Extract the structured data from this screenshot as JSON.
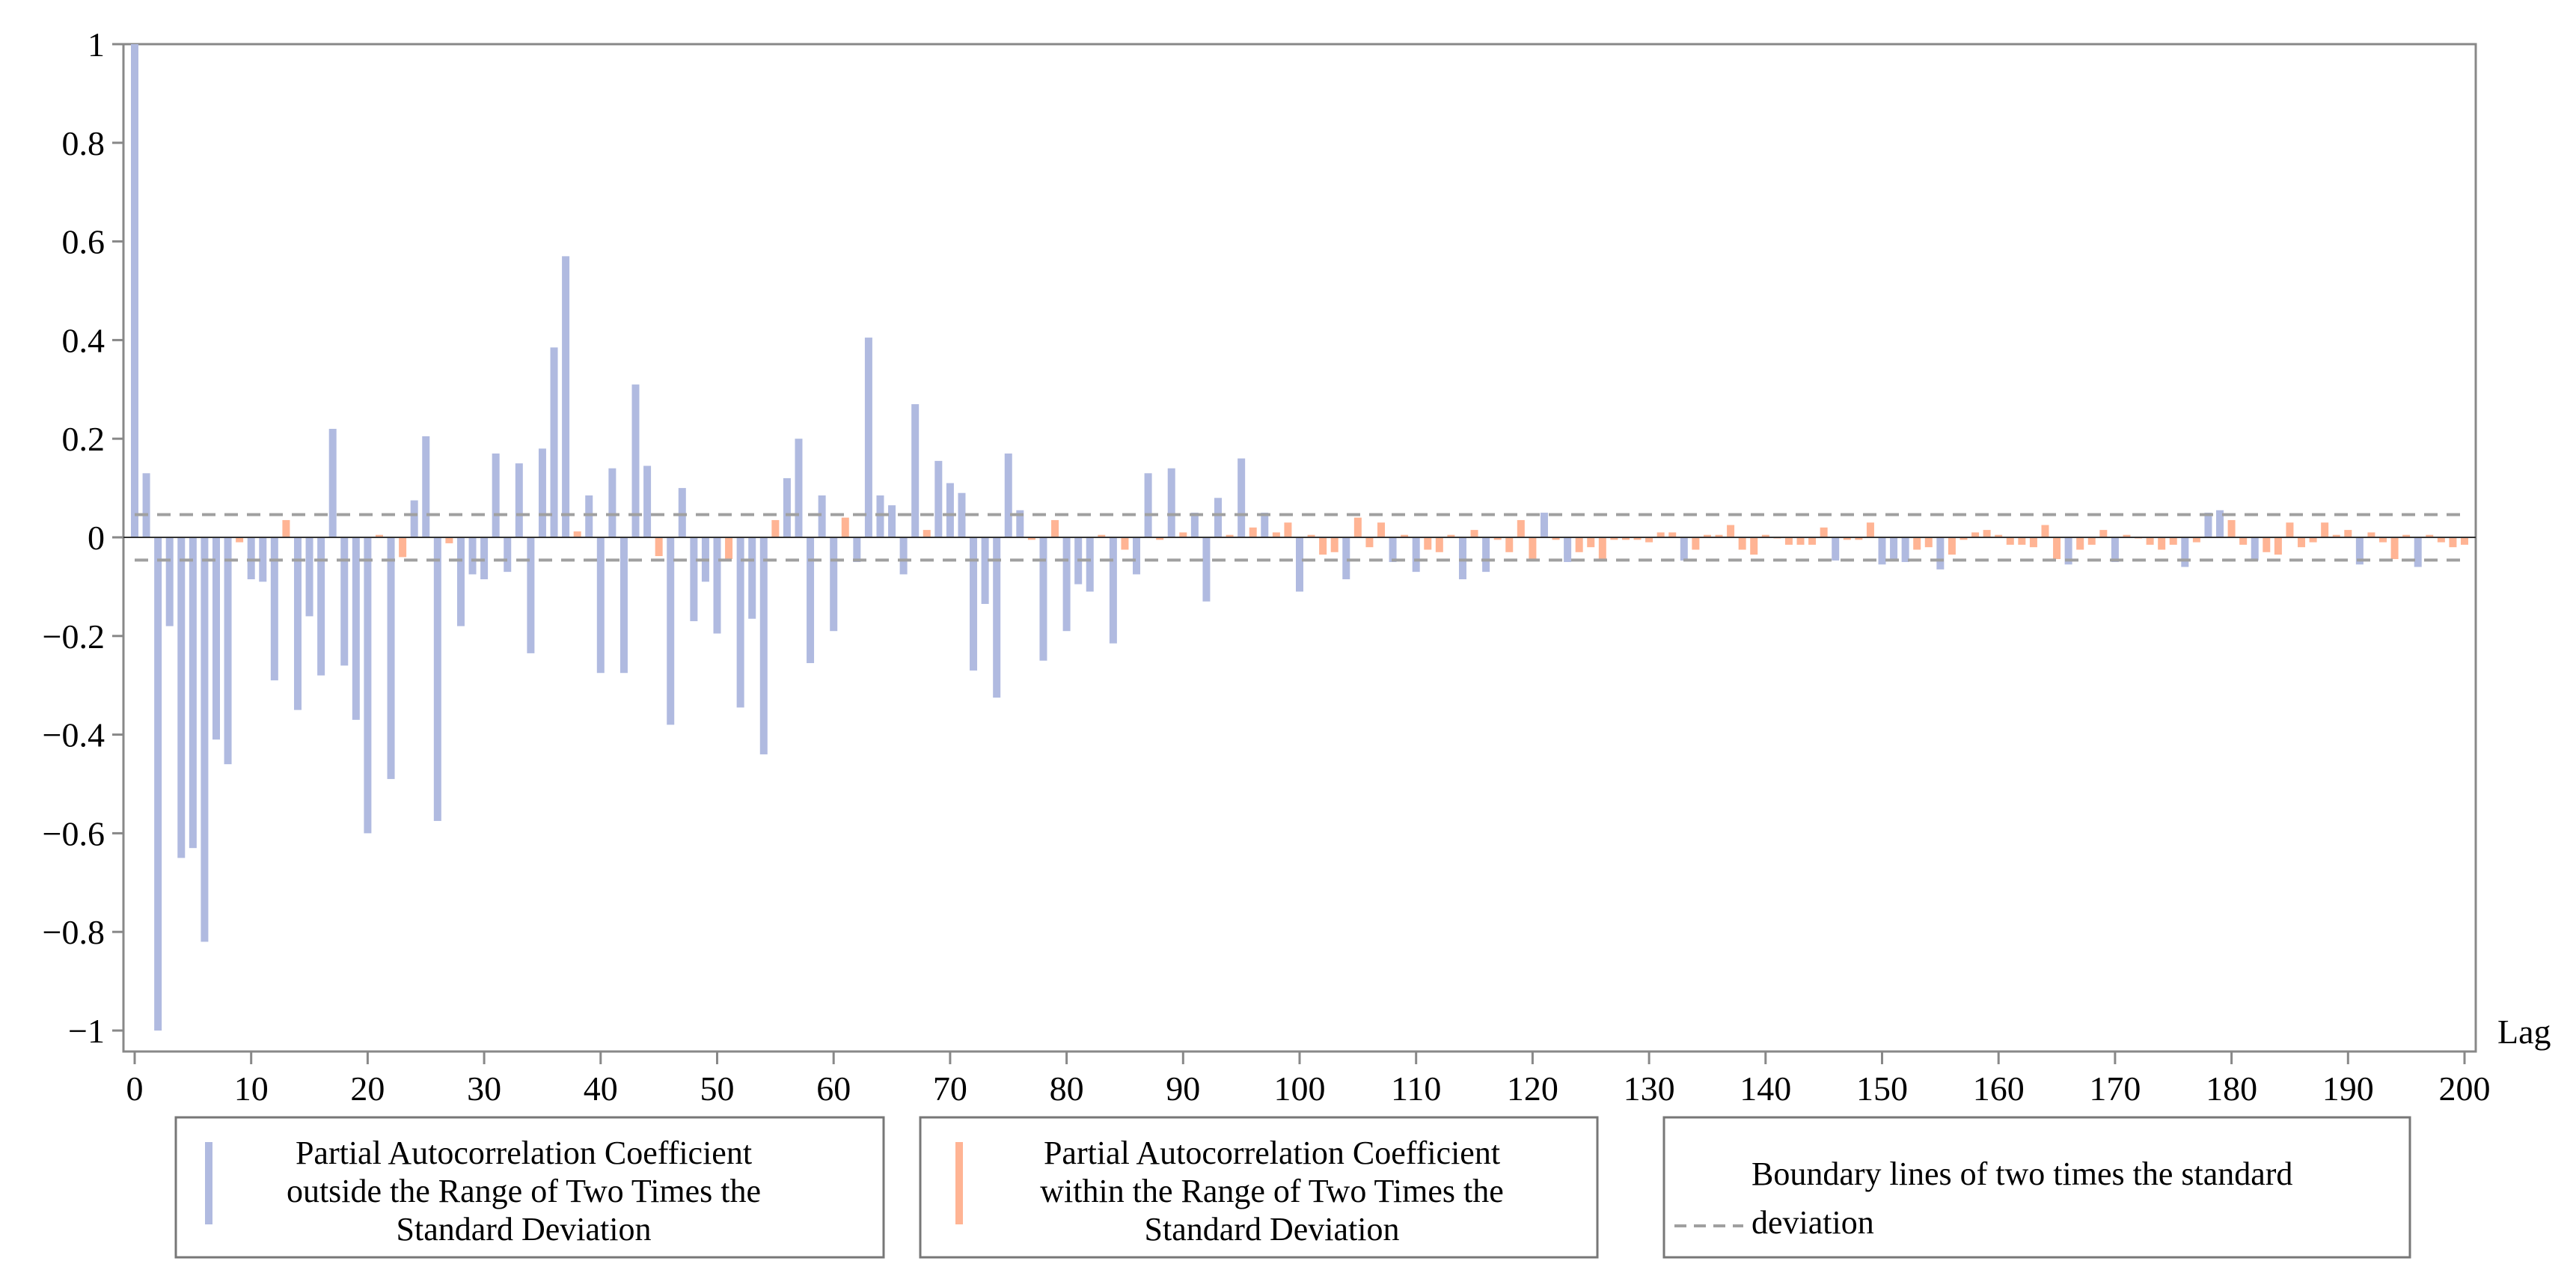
{
  "chart_data": {
    "type": "bar",
    "title": "",
    "xlabel": "Lag",
    "ylabel": "",
    "xlim": [
      0,
      200
    ],
    "ylim": [
      -1,
      1
    ],
    "x_ticks": [
      "0",
      "10",
      "20",
      "30",
      "40",
      "50",
      "60",
      "70",
      "80",
      "90",
      "100",
      "110",
      "120",
      "130",
      "140",
      "150",
      "160",
      "170",
      "180",
      "190",
      "200"
    ],
    "y_ticks": [
      "1",
      "0.8",
      "0.6",
      "0.4",
      "0.2",
      "0",
      "−0.2",
      "−0.4",
      "−0.6",
      "−0.8",
      "−1"
    ],
    "grid": false,
    "boundary": 0.046,
    "colors": {
      "outside": "#b0bae0",
      "within": "#ffb494",
      "boundary": "#a0a0a0"
    },
    "legend": {
      "placement": "bottom",
      "outside": [
        "Partial Autocorrelation Coefficient",
        "outside the Range of Two Times the",
        "Standard Deviation"
      ],
      "within": [
        "Partial Autocorrelation Coefficient",
        "within the Range of Two Times the",
        "Standard Deviation"
      ],
      "boundary": [
        "Boundary lines of two times the standard",
        "deviation"
      ]
    },
    "lags_start": 0,
    "values": [
      1,
      0.13,
      -1.0,
      -0.18,
      -0.65,
      -0.63,
      -0.82,
      -0.41,
      -0.46,
      -0.01,
      -0.085,
      -0.09,
      -0.29,
      0.035,
      -0.35,
      -0.16,
      -0.28,
      0.22,
      -0.26,
      -0.37,
      -0.6,
      0.005,
      -0.49,
      -0.04,
      0.075,
      0.205,
      -0.575,
      -0.012,
      -0.18,
      -0.075,
      -0.085,
      0.17,
      -0.07,
      0.15,
      -0.235,
      0.18,
      0.385,
      0.57,
      0.012,
      0.085,
      -0.275,
      0.14,
      -0.275,
      0.31,
      0.145,
      -0.038,
      -0.38,
      0.1,
      -0.17,
      -0.09,
      -0.195,
      -0.044,
      -0.345,
      -0.165,
      -0.44,
      0.035,
      0.12,
      0.2,
      -0.255,
      0.085,
      -0.19,
      0.04,
      -0.05,
      0.405,
      0.085,
      0.065,
      -0.075,
      0.27,
      0.015,
      0.155,
      0.11,
      0.09,
      -0.27,
      -0.135,
      -0.325,
      0.17,
      0.055,
      -0.005,
      -0.25,
      0.035,
      -0.19,
      -0.095,
      -0.11,
      0.005,
      -0.215,
      -0.025,
      -0.075,
      0.13,
      -0.005,
      0.14,
      0.01,
      0.05,
      -0.13,
      0.08,
      0.005,
      0.16,
      0.02,
      0.05,
      0.01,
      0.03,
      -0.11,
      0.005,
      -0.035,
      -0.03,
      -0.085,
      0.04,
      -0.02,
      0.03,
      -0.05,
      0.005,
      -0.07,
      -0.025,
      -0.03,
      0.005,
      -0.085,
      0.015,
      -0.07,
      -0.005,
      -0.03,
      0.035,
      -0.044,
      0.05,
      -0.005,
      -0.05,
      -0.03,
      -0.02,
      -0.044,
      -0.005,
      -0.005,
      -0.005,
      -0.01,
      0.01,
      0.01,
      -0.047,
      -0.025,
      0.005,
      0.005,
      0.025,
      -0.025,
      -0.035,
      0.005,
      0,
      -0.015,
      -0.015,
      -0.015,
      0.02,
      -0.047,
      -0.005,
      -0.005,
      0.03,
      -0.055,
      -0.047,
      -0.05,
      -0.025,
      -0.02,
      -0.065,
      -0.035,
      -0.005,
      0.01,
      0.015,
      0.005,
      -0.015,
      -0.015,
      -0.02,
      0.025,
      -0.044,
      -0.055,
      -0.025,
      -0.015,
      0.015,
      -0.05,
      0.005,
      0,
      -0.015,
      -0.025,
      -0.015,
      -0.06,
      -0.01,
      0.05,
      0.055,
      0.035,
      -0.015,
      -0.047,
      -0.03,
      -0.035,
      0.03,
      -0.02,
      -0.01,
      0.03,
      0.005,
      0.015,
      -0.055,
      0.01,
      -0.01,
      -0.044,
      0.005,
      -0.06,
      0.005,
      -0.01,
      -0.02,
      -0.015
    ]
  }
}
